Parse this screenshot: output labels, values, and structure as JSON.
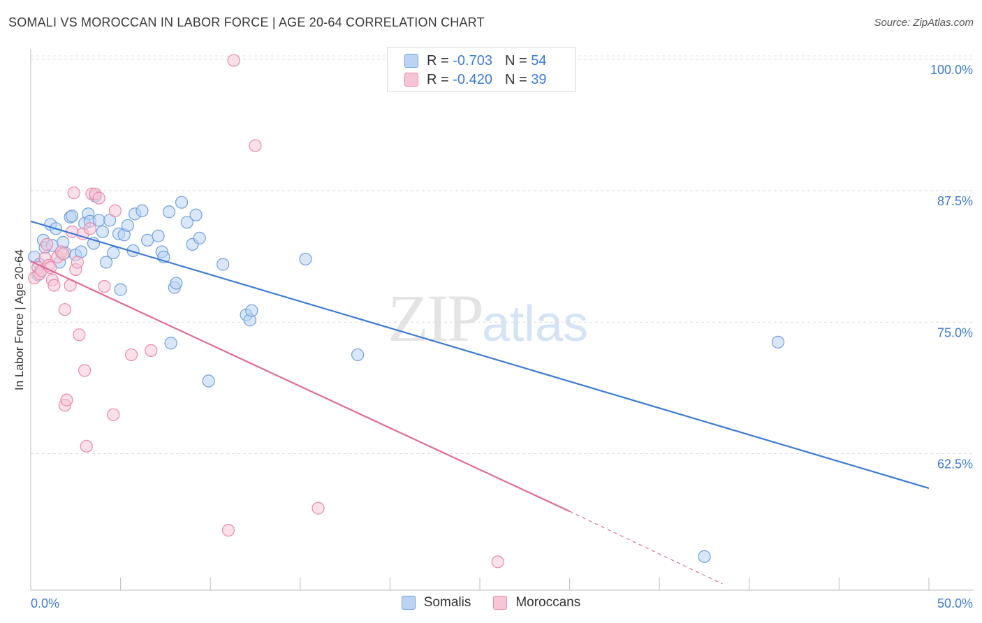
{
  "title": "SOMALI VS MOROCCAN IN LABOR FORCE | AGE 20-64 CORRELATION CHART",
  "source": "Source: ZipAtlas.com",
  "watermark": {
    "zip": "ZIP",
    "atlas": "atlas"
  },
  "legend": {
    "r_label": "R =",
    "n_label": "N =",
    "rows": [
      {
        "r": "-0.703",
        "n": "54",
        "color": "#6fa0e0",
        "fill": "#bcd4f3"
      },
      {
        "r": "-0.420",
        "n": "39",
        "color": "#e88aaa",
        "fill": "#f6c6d6"
      }
    ]
  },
  "bottom_legend": [
    {
      "label": "Somalis",
      "color": "#6fa0e0",
      "fill": "#bcd4f3"
    },
    {
      "label": "Moroccans",
      "color": "#e88aaa",
      "fill": "#f6c6d6"
    }
  ],
  "chart_data": {
    "type": "scatter",
    "title": "SOMALI VS MOROCCAN IN LABOR FORCE | AGE 20-64 CORRELATION CHART",
    "xlabel": "",
    "ylabel": "In Labor Force | Age 20-64",
    "xlim": [
      0,
      50
    ],
    "ylim": [
      49.5,
      101
    ],
    "x_tick_labels": [
      {
        "value": 0,
        "label": "0.0%"
      },
      {
        "value": 50,
        "label": "50.0%"
      }
    ],
    "y_tick_labels": [
      {
        "value": 100,
        "label": "100.0%"
      },
      {
        "value": 87.5,
        "label": "87.5%"
      },
      {
        "value": 75,
        "label": "75.0%"
      },
      {
        "value": 62.5,
        "label": "62.5%"
      }
    ],
    "x_minor_ticks": [
      5,
      10,
      15,
      20,
      25,
      30,
      35,
      40,
      45,
      50
    ],
    "series": [
      {
        "name": "Somalis",
        "color": "#3d7bd6",
        "fill": "#bcd4f3",
        "stroke": "#6fa0e0",
        "points": [
          [
            0.2,
            81.2
          ],
          [
            0.4,
            79.5
          ],
          [
            0.5,
            80.5
          ],
          [
            0.7,
            82.8
          ],
          [
            0.8,
            82.1
          ],
          [
            1.1,
            84.3
          ],
          [
            1.2,
            82.3
          ],
          [
            1.4,
            83.9
          ],
          [
            1.6,
            80.7
          ],
          [
            1.8,
            82.6
          ],
          [
            1.9,
            81.6
          ],
          [
            2.2,
            85.0
          ],
          [
            2.3,
            85.1
          ],
          [
            2.5,
            81.4
          ],
          [
            2.8,
            81.7
          ],
          [
            3.0,
            84.4
          ],
          [
            3.2,
            85.3
          ],
          [
            3.3,
            84.6
          ],
          [
            3.5,
            82.5
          ],
          [
            3.6,
            87.0
          ],
          [
            3.8,
            84.7
          ],
          [
            4.0,
            83.6
          ],
          [
            4.2,
            80.7
          ],
          [
            4.4,
            84.7
          ],
          [
            4.6,
            81.6
          ],
          [
            4.9,
            83.4
          ],
          [
            5.0,
            78.1
          ],
          [
            5.2,
            83.3
          ],
          [
            5.4,
            84.2
          ],
          [
            5.7,
            81.8
          ],
          [
            5.8,
            85.3
          ],
          [
            6.2,
            85.6
          ],
          [
            6.5,
            82.8
          ],
          [
            7.1,
            83.2
          ],
          [
            7.3,
            81.7
          ],
          [
            7.4,
            81.2
          ],
          [
            7.7,
            85.5
          ],
          [
            7.8,
            73.0
          ],
          [
            8.0,
            78.3
          ],
          [
            8.1,
            78.7
          ],
          [
            8.4,
            86.4
          ],
          [
            8.7,
            84.5
          ],
          [
            9.0,
            82.4
          ],
          [
            9.2,
            85.2
          ],
          [
            9.4,
            83.0
          ],
          [
            9.9,
            69.4
          ],
          [
            10.7,
            80.5
          ],
          [
            12.0,
            75.7
          ],
          [
            12.2,
            75.2
          ],
          [
            12.3,
            76.1
          ],
          [
            15.3,
            81.0
          ],
          [
            18.2,
            71.9
          ],
          [
            41.6,
            73.1
          ],
          [
            37.5,
            52.7
          ]
        ],
        "trend": {
          "x0": 0,
          "y0": 84.6,
          "x1": 50,
          "y1": 59.2,
          "dashed_from": null
        }
      },
      {
        "name": "Moroccans",
        "color": "#e06a95",
        "fill": "#f6c6d6",
        "stroke": "#e88aaa",
        "points": [
          [
            0.2,
            79.2
          ],
          [
            0.4,
            80.2
          ],
          [
            0.5,
            79.6
          ],
          [
            0.6,
            79.9
          ],
          [
            0.8,
            81.1
          ],
          [
            0.9,
            82.4
          ],
          [
            1.0,
            80.4
          ],
          [
            1.1,
            80.2
          ],
          [
            1.2,
            79.0
          ],
          [
            1.3,
            78.5
          ],
          [
            1.5,
            81.2
          ],
          [
            1.7,
            81.7
          ],
          [
            1.8,
            81.5
          ],
          [
            1.9,
            67.1
          ],
          [
            1.9,
            76.2
          ],
          [
            2.0,
            67.6
          ],
          [
            2.2,
            78.5
          ],
          [
            2.3,
            83.6
          ],
          [
            2.5,
            80.0
          ],
          [
            2.6,
            80.7
          ],
          [
            2.7,
            73.8
          ],
          [
            2.9,
            83.4
          ],
          [
            3.0,
            70.4
          ],
          [
            3.1,
            63.2
          ],
          [
            3.3,
            83.9
          ],
          [
            3.4,
            87.2
          ],
          [
            3.6,
            87.2
          ],
          [
            3.8,
            86.8
          ],
          [
            4.1,
            78.4
          ],
          [
            4.6,
            66.2
          ],
          [
            4.7,
            85.6
          ],
          [
            5.6,
            71.9
          ],
          [
            6.7,
            72.3
          ],
          [
            11.3,
            99.9
          ],
          [
            11.0,
            55.2
          ],
          [
            12.5,
            91.8
          ],
          [
            16.0,
            57.3
          ],
          [
            26.0,
            52.2
          ],
          [
            2.4,
            87.3
          ]
        ],
        "trend": {
          "x0": 0,
          "y0": 80.8,
          "x1": 30,
          "y1": 57.0,
          "dashed_to_x": 38.5,
          "dashed_to_y": 50.1
        }
      }
    ]
  }
}
